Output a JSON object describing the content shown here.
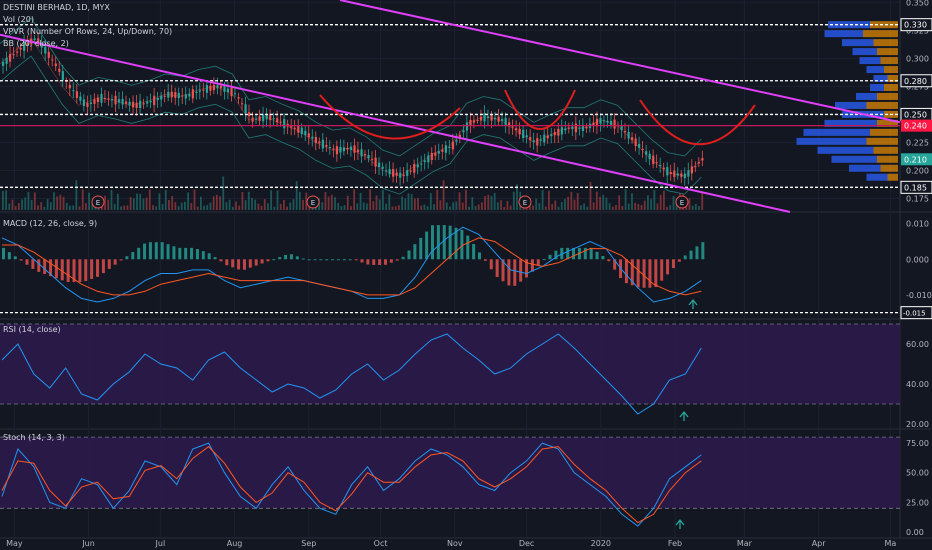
{
  "header": {
    "symbol_line": "DESTINI BERHAD, 1D, MYX",
    "vol_line": "Vol (20)",
    "vpvr_line": "VPVR (Number Of Rows, 24, Up/Down, 70)",
    "bb_line": "BB (20, close, 2)"
  },
  "panes": {
    "macd_title": "MACD (12, 26, close, 9)",
    "rsi_title": "RSI (14, close)",
    "stoch_title": "Stoch (14, 3, 3)"
  },
  "colors": {
    "background": "#131722",
    "up": "#26a69a",
    "down": "#ef5350",
    "trendline": "#e040fb",
    "horizontal_line": "#c2185b",
    "arc": "#e01e1e",
    "price_label_red": "#ff1744",
    "price_label_green": "#26a69a",
    "macd_line": "#2196f3",
    "signal_line": "#ff5722",
    "rsi_line": "#2196f3",
    "stoch_k": "#2196f3",
    "stoch_d": "#ff5722",
    "band_fill": "#2c1a4a"
  },
  "chart_data": [
    {
      "type": "candlestick",
      "title": "DESTINI BERHAD, 1D, MYX",
      "x_ticks": [
        "May",
        "Jun",
        "Jul",
        "Aug",
        "Sep",
        "Oct",
        "Nov",
        "Dec",
        "2020",
        "Feb",
        "Mar",
        "Apr",
        "Ma"
      ],
      "y_ticks": [
        "0.350",
        "0.325",
        "0.300",
        "0.275",
        "0.250",
        "0.225",
        "0.200",
        "0.175"
      ],
      "ylim": [
        0.163,
        0.352
      ],
      "price_levels": [
        {
          "value": 0.33,
          "label": "0.330",
          "style": "dotted-white"
        },
        {
          "value": 0.28,
          "label": "0.280",
          "style": "dotted-white"
        },
        {
          "value": 0.25,
          "label": "0.250",
          "style": "dotted-white"
        },
        {
          "value": 0.185,
          "label": "0.185",
          "style": "dotted-white"
        },
        {
          "value": 0.24,
          "label": "0.240",
          "style": "solid-red"
        }
      ],
      "current_price": {
        "value": 0.21,
        "label": "0.210"
      },
      "earnings_markers": [
        "E",
        "E",
        "E",
        "E"
      ],
      "trendlines": [
        {
          "from": [
            "Apr 25",
            0.33
          ],
          "to": [
            "Apr 2020",
            0.25
          ]
        },
        {
          "from": [
            "Apr 25",
            0.322
          ],
          "to": [
            "Mar 2020",
            0.165
          ]
        }
      ],
      "close_points": [
        [
          "2019-04-25",
          0.295
        ],
        [
          "2019-05-02",
          0.308
        ],
        [
          "2019-05-08",
          0.318
        ],
        [
          "2019-05-14",
          0.298
        ],
        [
          "2019-05-21",
          0.275
        ],
        [
          "2019-05-28",
          0.258
        ],
        [
          "2019-06-05",
          0.265
        ],
        [
          "2019-06-12",
          0.262
        ],
        [
          "2019-06-19",
          0.258
        ],
        [
          "2019-06-26",
          0.262
        ],
        [
          "2019-07-03",
          0.268
        ],
        [
          "2019-07-10",
          0.266
        ],
        [
          "2019-07-17",
          0.272
        ],
        [
          "2019-07-24",
          0.275
        ],
        [
          "2019-07-31",
          0.268
        ],
        [
          "2019-08-07",
          0.245
        ],
        [
          "2019-08-14",
          0.248
        ],
        [
          "2019-08-21",
          0.241
        ],
        [
          "2019-08-28",
          0.235
        ],
        [
          "2019-09-04",
          0.225
        ],
        [
          "2019-09-11",
          0.218
        ],
        [
          "2019-09-18",
          0.22
        ],
        [
          "2019-09-25",
          0.212
        ],
        [
          "2019-10-02",
          0.2
        ],
        [
          "2019-10-09",
          0.195
        ],
        [
          "2019-10-16",
          0.205
        ],
        [
          "2019-10-23",
          0.215
        ],
        [
          "2019-10-30",
          0.222
        ],
        [
          "2019-11-06",
          0.242
        ],
        [
          "2019-11-13",
          0.248
        ],
        [
          "2019-11-20",
          0.245
        ],
        [
          "2019-11-27",
          0.235
        ],
        [
          "2019-12-04",
          0.225
        ],
        [
          "2019-12-11",
          0.232
        ],
        [
          "2019-12-18",
          0.238
        ],
        [
          "2019-12-25",
          0.238
        ],
        [
          "2020-01-01",
          0.245
        ],
        [
          "2020-01-08",
          0.24
        ],
        [
          "2020-01-15",
          0.225
        ],
        [
          "2020-01-22",
          0.21
        ],
        [
          "2020-01-29",
          0.198
        ],
        [
          "2020-02-05",
          0.195
        ],
        [
          "2020-02-12",
          0.21
        ]
      ],
      "volume_profile": [
        {
          "price": 0.33,
          "up": 0.6,
          "down": 0.4
        },
        {
          "price": 0.322,
          "up": 0.55,
          "down": 0.5
        },
        {
          "price": 0.314,
          "up": 0.45,
          "down": 0.35
        },
        {
          "price": 0.306,
          "up": 0.35,
          "down": 0.3
        },
        {
          "price": 0.298,
          "up": 0.3,
          "down": 0.25
        },
        {
          "price": 0.29,
          "up": 0.25,
          "down": 0.2
        },
        {
          "price": 0.282,
          "up": 0.2,
          "down": 0.15
        },
        {
          "price": 0.274,
          "up": 0.2,
          "down": 0.2
        },
        {
          "price": 0.266,
          "up": 0.3,
          "down": 0.3
        },
        {
          "price": 0.258,
          "up": 0.45,
          "down": 0.45
        },
        {
          "price": 0.25,
          "up": 0.6,
          "down": 0.2
        },
        {
          "price": 0.242,
          "up": 0.75,
          "down": 0.3
        },
        {
          "price": 0.234,
          "up": 0.95,
          "down": 0.4
        },
        {
          "price": 0.226,
          "up": 1.0,
          "down": 0.45
        },
        {
          "price": 0.218,
          "up": 0.8,
          "down": 0.35
        },
        {
          "price": 0.21,
          "up": 0.65,
          "down": 0.3
        },
        {
          "price": 0.202,
          "up": 0.45,
          "down": 0.25
        },
        {
          "price": 0.194,
          "up": 0.3,
          "down": 0.15
        }
      ]
    },
    {
      "type": "line",
      "title": "MACD (12, 26, close, 9)",
      "y_ticks": [
        "0.010",
        "0.000",
        "-0.010"
      ],
      "ylim": [
        -0.0165,
        0.013
      ],
      "reference_level": {
        "value": -0.015,
        "label": "-0.015"
      },
      "series": [
        {
          "name": "MACD",
          "values": [
            0.006,
            0.004,
            0.0,
            -0.004,
            -0.008,
            -0.011,
            -0.012,
            -0.011,
            -0.009,
            -0.006,
            -0.004,
            -0.004,
            -0.003,
            -0.003,
            -0.006,
            -0.008,
            -0.007,
            -0.006,
            -0.005,
            -0.006,
            -0.007,
            -0.008,
            -0.009,
            -0.011,
            -0.011,
            -0.01,
            -0.005,
            0.002,
            0.006,
            0.009,
            0.007,
            0.002,
            -0.003,
            -0.004,
            -0.002,
            0.001,
            0.003,
            0.005,
            0.003,
            -0.003,
            -0.008,
            -0.012,
            -0.011,
            -0.009,
            -0.006
          ]
        },
        {
          "name": "Signal",
          "values": [
            0.004,
            0.004,
            0.002,
            -0.001,
            -0.004,
            -0.007,
            -0.009,
            -0.01,
            -0.01,
            -0.009,
            -0.007,
            -0.006,
            -0.005,
            -0.004,
            -0.005,
            -0.006,
            -0.006,
            -0.006,
            -0.006,
            -0.006,
            -0.007,
            -0.008,
            -0.009,
            -0.01,
            -0.01,
            -0.01,
            -0.008,
            -0.004,
            0.0,
            0.004,
            0.006,
            0.005,
            0.002,
            -0.001,
            -0.002,
            -0.001,
            0.001,
            0.003,
            0.003,
            0.001,
            -0.003,
            -0.007,
            -0.009,
            -0.01,
            -0.009
          ]
        }
      ]
    },
    {
      "type": "line",
      "title": "RSI (14, close)",
      "y_ticks": [
        "60.00",
        "40.00",
        "20.00"
      ],
      "ylim": [
        18,
        72
      ],
      "bands": [
        70,
        30
      ],
      "series": [
        {
          "name": "RSI",
          "values": [
            52,
            60,
            45,
            38,
            48,
            35,
            32,
            40,
            46,
            55,
            50,
            48,
            42,
            52,
            56,
            48,
            42,
            36,
            40,
            38,
            33,
            37,
            45,
            50,
            42,
            47,
            55,
            62,
            65,
            58,
            52,
            45,
            48,
            55,
            60,
            65,
            58,
            50,
            42,
            34,
            25,
            30,
            42,
            45,
            58
          ]
        }
      ]
    },
    {
      "type": "line",
      "title": "Stoch (14, 3, 3)",
      "y_ticks": [
        "75.00",
        "50.00",
        "25.00",
        "0.00"
      ],
      "ylim": [
        -5,
        86
      ],
      "bands": [
        80,
        20
      ],
      "series": [
        {
          "name": "%K",
          "values": [
            30,
            70,
            55,
            25,
            20,
            45,
            40,
            20,
            35,
            60,
            55,
            40,
            70,
            75,
            50,
            30,
            20,
            40,
            55,
            35,
            20,
            15,
            40,
            55,
            35,
            45,
            60,
            70,
            65,
            55,
            40,
            35,
            50,
            60,
            75,
            70,
            50,
            40,
            30,
            15,
            5,
            20,
            45,
            55,
            65
          ]
        },
        {
          "name": "%D",
          "values": [
            35,
            60,
            58,
            35,
            22,
            38,
            42,
            28,
            30,
            52,
            56,
            45,
            62,
            72,
            58,
            38,
            25,
            33,
            50,
            42,
            25,
            18,
            32,
            50,
            42,
            42,
            55,
            65,
            67,
            60,
            45,
            38,
            45,
            55,
            70,
            72,
            57,
            45,
            35,
            20,
            8,
            15,
            35,
            50,
            60
          ]
        }
      ]
    }
  ]
}
